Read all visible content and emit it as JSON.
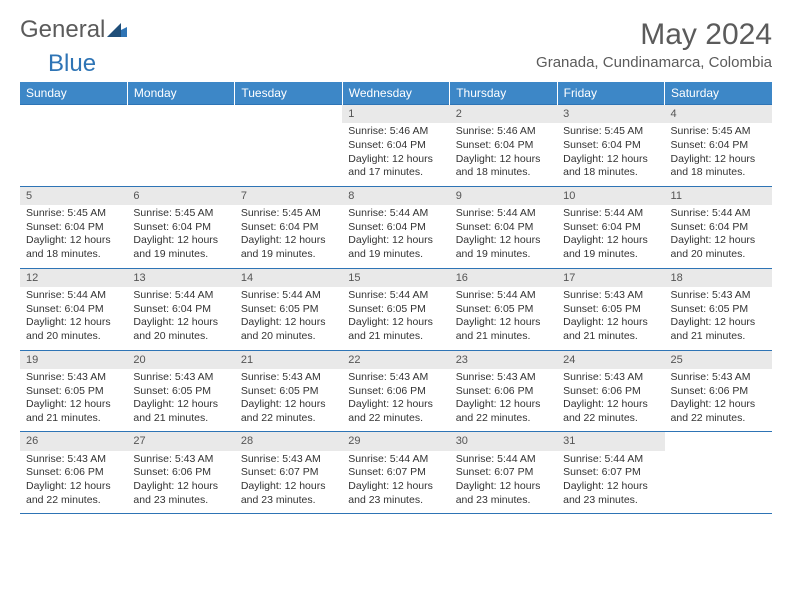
{
  "brand": {
    "textGray": "General",
    "textBlue": "Blue"
  },
  "title": "May 2024",
  "location": "Granada, Cundinamarca, Colombia",
  "colors": {
    "headerBg": "#3d87c7",
    "headerText": "#ffffff",
    "dayNumBg": "#e9e9e9",
    "borderBlue": "#2e74b5",
    "textGray": "#5b5b5b"
  },
  "dayHeaders": [
    "Sunday",
    "Monday",
    "Tuesday",
    "Wednesday",
    "Thursday",
    "Friday",
    "Saturday"
  ],
  "weeks": [
    [
      null,
      null,
      null,
      {
        "n": "1",
        "sr": "5:46 AM",
        "ss": "6:04 PM",
        "dl": "12 hours and 17 minutes."
      },
      {
        "n": "2",
        "sr": "5:46 AM",
        "ss": "6:04 PM",
        "dl": "12 hours and 18 minutes."
      },
      {
        "n": "3",
        "sr": "5:45 AM",
        "ss": "6:04 PM",
        "dl": "12 hours and 18 minutes."
      },
      {
        "n": "4",
        "sr": "5:45 AM",
        "ss": "6:04 PM",
        "dl": "12 hours and 18 minutes."
      }
    ],
    [
      {
        "n": "5",
        "sr": "5:45 AM",
        "ss": "6:04 PM",
        "dl": "12 hours and 18 minutes."
      },
      {
        "n": "6",
        "sr": "5:45 AM",
        "ss": "6:04 PM",
        "dl": "12 hours and 19 minutes."
      },
      {
        "n": "7",
        "sr": "5:45 AM",
        "ss": "6:04 PM",
        "dl": "12 hours and 19 minutes."
      },
      {
        "n": "8",
        "sr": "5:44 AM",
        "ss": "6:04 PM",
        "dl": "12 hours and 19 minutes."
      },
      {
        "n": "9",
        "sr": "5:44 AM",
        "ss": "6:04 PM",
        "dl": "12 hours and 19 minutes."
      },
      {
        "n": "10",
        "sr": "5:44 AM",
        "ss": "6:04 PM",
        "dl": "12 hours and 19 minutes."
      },
      {
        "n": "11",
        "sr": "5:44 AM",
        "ss": "6:04 PM",
        "dl": "12 hours and 20 minutes."
      }
    ],
    [
      {
        "n": "12",
        "sr": "5:44 AM",
        "ss": "6:04 PM",
        "dl": "12 hours and 20 minutes."
      },
      {
        "n": "13",
        "sr": "5:44 AM",
        "ss": "6:04 PM",
        "dl": "12 hours and 20 minutes."
      },
      {
        "n": "14",
        "sr": "5:44 AM",
        "ss": "6:05 PM",
        "dl": "12 hours and 20 minutes."
      },
      {
        "n": "15",
        "sr": "5:44 AM",
        "ss": "6:05 PM",
        "dl": "12 hours and 21 minutes."
      },
      {
        "n": "16",
        "sr": "5:44 AM",
        "ss": "6:05 PM",
        "dl": "12 hours and 21 minutes."
      },
      {
        "n": "17",
        "sr": "5:43 AM",
        "ss": "6:05 PM",
        "dl": "12 hours and 21 minutes."
      },
      {
        "n": "18",
        "sr": "5:43 AM",
        "ss": "6:05 PM",
        "dl": "12 hours and 21 minutes."
      }
    ],
    [
      {
        "n": "19",
        "sr": "5:43 AM",
        "ss": "6:05 PM",
        "dl": "12 hours and 21 minutes."
      },
      {
        "n": "20",
        "sr": "5:43 AM",
        "ss": "6:05 PM",
        "dl": "12 hours and 21 minutes."
      },
      {
        "n": "21",
        "sr": "5:43 AM",
        "ss": "6:05 PM",
        "dl": "12 hours and 22 minutes."
      },
      {
        "n": "22",
        "sr": "5:43 AM",
        "ss": "6:06 PM",
        "dl": "12 hours and 22 minutes."
      },
      {
        "n": "23",
        "sr": "5:43 AM",
        "ss": "6:06 PM",
        "dl": "12 hours and 22 minutes."
      },
      {
        "n": "24",
        "sr": "5:43 AM",
        "ss": "6:06 PM",
        "dl": "12 hours and 22 minutes."
      },
      {
        "n": "25",
        "sr": "5:43 AM",
        "ss": "6:06 PM",
        "dl": "12 hours and 22 minutes."
      }
    ],
    [
      {
        "n": "26",
        "sr": "5:43 AM",
        "ss": "6:06 PM",
        "dl": "12 hours and 22 minutes."
      },
      {
        "n": "27",
        "sr": "5:43 AM",
        "ss": "6:06 PM",
        "dl": "12 hours and 23 minutes."
      },
      {
        "n": "28",
        "sr": "5:43 AM",
        "ss": "6:07 PM",
        "dl": "12 hours and 23 minutes."
      },
      {
        "n": "29",
        "sr": "5:44 AM",
        "ss": "6:07 PM",
        "dl": "12 hours and 23 minutes."
      },
      {
        "n": "30",
        "sr": "5:44 AM",
        "ss": "6:07 PM",
        "dl": "12 hours and 23 minutes."
      },
      {
        "n": "31",
        "sr": "5:44 AM",
        "ss": "6:07 PM",
        "dl": "12 hours and 23 minutes."
      },
      null
    ]
  ],
  "labels": {
    "sunrise": "Sunrise:",
    "sunset": "Sunset:",
    "daylight": "Daylight:"
  }
}
